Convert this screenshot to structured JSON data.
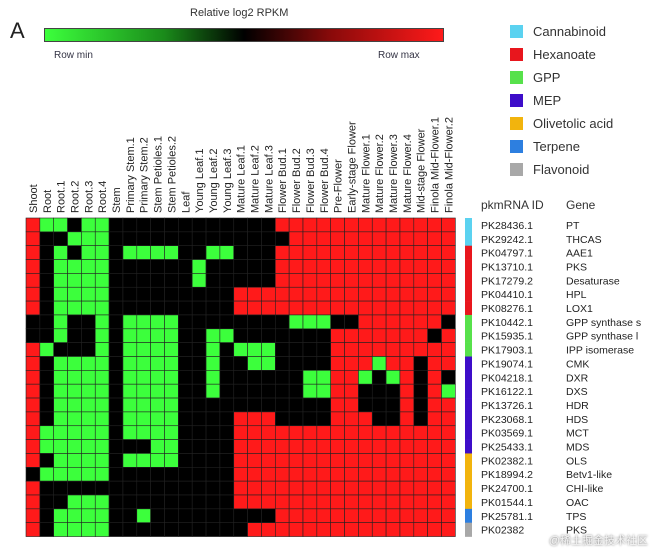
{
  "panel_label": "A",
  "chart_data": {
    "type": "heatmap",
    "title": "Relative log2 RPKM",
    "scale_min_label": "Row min",
    "scale_max_label": "Row max",
    "scale_colors": [
      "#3cff3c",
      "#000000",
      "#ff1a1a"
    ],
    "columns": [
      "Shoot",
      "Root",
      "Root.1",
      "Root.2",
      "Root.3",
      "Root.4",
      "Stem",
      "Primary Stem.1",
      "Primary Stem.2",
      "Stem Petioles.1",
      "Stem Petioles.2",
      "Leaf",
      "Young Leaf.1",
      "Young Leaf.2",
      "Young Leaf.3",
      "Mature Leaf.1",
      "Mature Leaf.2",
      "Mature Leaf.3",
      "Flower Bud.1",
      "Flower Bud.2",
      "Flower Bud.3",
      "Flower Bud.4",
      "Pre-Flower",
      "Early-stage Flower",
      "Mature Flower.1",
      "Mature Flower.2",
      "Mature Flower.3",
      "Mature Flower.4",
      "Mid-stage Flower",
      "Finola Mid-Flower.1",
      "Finola Mid-Flower.2"
    ],
    "row_header_id": "pkmRNA ID",
    "row_header_gene": "Gene",
    "rows": [
      {
        "id": "PK28436.1",
        "gene": "PT",
        "category": 0
      },
      {
        "id": "PK29242.1",
        "gene": "THCAS",
        "category": 0
      },
      {
        "id": "PK04797.1",
        "gene": "AAE1",
        "category": 1
      },
      {
        "id": "PK13710.1",
        "gene": "PKS",
        "category": 1
      },
      {
        "id": "PK17279.2",
        "gene": "Desaturase",
        "category": 1
      },
      {
        "id": "PK04410.1",
        "gene": "HPL",
        "category": 1
      },
      {
        "id": "PK08276.1",
        "gene": "LOX1",
        "category": 1
      },
      {
        "id": "PK10442.1",
        "gene": "GPP synthase s",
        "category": 2
      },
      {
        "id": "PK15935.1",
        "gene": "GPP synthase l",
        "category": 2
      },
      {
        "id": "PK17903.1",
        "gene": "IPP isomerase",
        "category": 2
      },
      {
        "id": "PK19074.1",
        "gene": "CMK",
        "category": 3
      },
      {
        "id": "PK04218.1",
        "gene": "DXR",
        "category": 3
      },
      {
        "id": "PK16122.1",
        "gene": "DXS",
        "category": 3
      },
      {
        "id": "PK13726.1",
        "gene": "HDR",
        "category": 3
      },
      {
        "id": "PK23068.1",
        "gene": "HDS",
        "category": 3
      },
      {
        "id": "PK03569.1",
        "gene": "MCT",
        "category": 3
      },
      {
        "id": "PK25433.1",
        "gene": "MDS",
        "category": 3
      },
      {
        "id": "PK02382.1",
        "gene": "OLS",
        "category": 4
      },
      {
        "id": "PK18994.2",
        "gene": "Betv1-like",
        "category": 4
      },
      {
        "id": "PK24700.1",
        "gene": "CHI-like",
        "category": 4
      },
      {
        "id": "PK01544.1",
        "gene": "OAC",
        "category": 4
      },
      {
        "id": "PK25781.1",
        "gene": "TPS",
        "category": 5
      },
      {
        "id": "PK02382",
        "gene": "PKS",
        "category": 6
      }
    ],
    "values": [
      [
        1,
        -1,
        -1,
        0,
        -1,
        -1,
        0,
        0,
        0,
        0,
        0,
        0,
        0,
        0,
        0,
        0,
        0,
        0,
        1,
        1,
        1,
        1,
        1,
        1,
        1,
        1,
        1,
        1,
        1,
        1,
        1
      ],
      [
        1,
        0,
        0,
        -1,
        -1,
        -1,
        0,
        0,
        0,
        0,
        0,
        0,
        0,
        0,
        0,
        0,
        0,
        0,
        0,
        1,
        1,
        1,
        1,
        1,
        1,
        1,
        1,
        1,
        1,
        1,
        1
      ],
      [
        1,
        0,
        -1,
        0,
        -1,
        -1,
        0,
        -1,
        -1,
        -1,
        -1,
        0,
        0,
        -1,
        -1,
        0,
        0,
        0,
        1,
        1,
        1,
        1,
        1,
        1,
        1,
        1,
        1,
        1,
        1,
        1,
        1
      ],
      [
        1,
        0,
        -1,
        -1,
        -1,
        -1,
        0,
        0,
        0,
        0,
        0,
        0,
        -1,
        0,
        0,
        0,
        0,
        0,
        1,
        1,
        1,
        1,
        1,
        1,
        1,
        1,
        1,
        1,
        1,
        1,
        1
      ],
      [
        1,
        0,
        -1,
        -1,
        -1,
        -1,
        0,
        0,
        0,
        0,
        0,
        0,
        -1,
        0,
        0,
        0,
        0,
        0,
        1,
        1,
        1,
        1,
        1,
        1,
        1,
        1,
        1,
        1,
        1,
        1,
        1
      ],
      [
        1,
        0,
        -1,
        -1,
        -1,
        -1,
        0,
        0,
        0,
        0,
        0,
        0,
        0,
        0,
        0,
        1,
        1,
        1,
        1,
        1,
        1,
        1,
        1,
        1,
        1,
        1,
        1,
        1,
        1,
        1,
        1
      ],
      [
        1,
        0,
        -1,
        -1,
        -1,
        -1,
        0,
        0,
        0,
        0,
        0,
        0,
        0,
        0,
        0,
        1,
        1,
        1,
        1,
        1,
        1,
        1,
        1,
        1,
        1,
        1,
        1,
        1,
        1,
        1,
        1
      ],
      [
        0,
        0,
        -1,
        0,
        0,
        -1,
        0,
        -1,
        -1,
        -1,
        -1,
        0,
        0,
        0,
        0,
        0,
        0,
        0,
        0,
        -1,
        -1,
        -1,
        0,
        0,
        1,
        1,
        1,
        1,
        1,
        1,
        0
      ],
      [
        0,
        0,
        -1,
        0,
        0,
        -1,
        0,
        -1,
        -1,
        -1,
        -1,
        0,
        0,
        -1,
        -1,
        0,
        0,
        0,
        0,
        0,
        0,
        0,
        1,
        1,
        1,
        1,
        1,
        1,
        1,
        0,
        1
      ],
      [
        1,
        -1,
        0,
        0,
        0,
        -1,
        0,
        -1,
        -1,
        -1,
        -1,
        0,
        0,
        -1,
        0,
        -1,
        -1,
        -1,
        0,
        0,
        0,
        0,
        1,
        1,
        1,
        1,
        1,
        1,
        1,
        1,
        1
      ],
      [
        1,
        0,
        -1,
        -1,
        -1,
        -1,
        0,
        -1,
        -1,
        -1,
        -1,
        0,
        0,
        -1,
        0,
        0,
        -1,
        -1,
        0,
        0,
        0,
        0,
        1,
        1,
        1,
        -1,
        1,
        1,
        0,
        1,
        1
      ],
      [
        1,
        0,
        -1,
        -1,
        -1,
        -1,
        0,
        -1,
        -1,
        -1,
        -1,
        0,
        0,
        -1,
        0,
        0,
        0,
        0,
        0,
        0,
        -1,
        -1,
        1,
        1,
        -1,
        0,
        -1,
        1,
        0,
        1,
        0
      ],
      [
        1,
        0,
        -1,
        -1,
        -1,
        -1,
        0,
        -1,
        -1,
        -1,
        -1,
        0,
        0,
        -1,
        0,
        0,
        0,
        0,
        0,
        0,
        -1,
        -1,
        1,
        1,
        0,
        0,
        0,
        1,
        0,
        1,
        -1
      ],
      [
        1,
        0,
        -1,
        -1,
        -1,
        -1,
        0,
        -1,
        -1,
        -1,
        -1,
        0,
        0,
        0,
        0,
        0,
        0,
        0,
        0,
        0,
        0,
        0,
        1,
        1,
        0,
        0,
        0,
        1,
        0,
        1,
        1
      ],
      [
        1,
        0,
        -1,
        -1,
        -1,
        -1,
        0,
        -1,
        -1,
        -1,
        -1,
        0,
        0,
        0,
        0,
        1,
        1,
        1,
        0,
        0,
        0,
        0,
        1,
        1,
        1,
        0,
        0,
        1,
        0,
        1,
        1
      ],
      [
        1,
        -1,
        -1,
        -1,
        -1,
        -1,
        0,
        -1,
        -1,
        -1,
        -1,
        0,
        0,
        0,
        0,
        1,
        1,
        1,
        1,
        1,
        1,
        1,
        1,
        1,
        1,
        1,
        1,
        1,
        1,
        1,
        1
      ],
      [
        1,
        -1,
        -1,
        -1,
        -1,
        -1,
        0,
        0,
        0,
        -1,
        -1,
        0,
        0,
        0,
        0,
        1,
        1,
        1,
        1,
        1,
        1,
        1,
        1,
        1,
        1,
        1,
        1,
        1,
        1,
        1,
        1
      ],
      [
        1,
        0,
        -1,
        -1,
        -1,
        -1,
        0,
        -1,
        -1,
        -1,
        -1,
        0,
        0,
        0,
        0,
        1,
        1,
        1,
        1,
        1,
        1,
        1,
        1,
        1,
        1,
        1,
        1,
        1,
        1,
        1,
        1
      ],
      [
        0,
        -1,
        -1,
        -1,
        -1,
        -1,
        0,
        0,
        0,
        0,
        0,
        0,
        0,
        0,
        0,
        1,
        1,
        1,
        1,
        1,
        1,
        1,
        1,
        1,
        1,
        1,
        1,
        1,
        1,
        1,
        1
      ],
      [
        1,
        0,
        0,
        0,
        0,
        0,
        0,
        0,
        0,
        0,
        0,
        0,
        0,
        0,
        0,
        1,
        1,
        1,
        1,
        1,
        1,
        1,
        1,
        1,
        1,
        1,
        1,
        1,
        1,
        1,
        1
      ],
      [
        1,
        0,
        0,
        -1,
        -1,
        -1,
        0,
        0,
        0,
        0,
        0,
        0,
        0,
        0,
        0,
        1,
        1,
        1,
        1,
        1,
        1,
        1,
        1,
        1,
        1,
        1,
        1,
        1,
        1,
        1,
        1
      ],
      [
        1,
        0,
        -1,
        -1,
        -1,
        -1,
        0,
        0,
        -1,
        0,
        0,
        0,
        0,
        0,
        0,
        0,
        0,
        0,
        1,
        1,
        1,
        1,
        1,
        1,
        1,
        1,
        1,
        1,
        1,
        1,
        1
      ],
      [
        1,
        0,
        -1,
        -1,
        -1,
        -1,
        0,
        0,
        0,
        0,
        0,
        0,
        0,
        0,
        0,
        0,
        1,
        1,
        1,
        1,
        1,
        1,
        1,
        1,
        1,
        1,
        1,
        1,
        1,
        1,
        1
      ]
    ],
    "legend": [
      {
        "label": "Cannabinoid",
        "color": "#5bd2f0"
      },
      {
        "label": "Hexanoate",
        "color": "#e8161d"
      },
      {
        "label": "GPP",
        "color": "#57e14b"
      },
      {
        "label": "MEP",
        "color": "#3d0dc9"
      },
      {
        "label": "Olivetolic acid",
        "color": "#f2b40d"
      },
      {
        "label": "Terpene",
        "color": "#2d7fe0"
      },
      {
        "label": "Flavonoid",
        "color": "#a8a8a8"
      }
    ]
  },
  "watermark": "@稀土掘金技术社区"
}
